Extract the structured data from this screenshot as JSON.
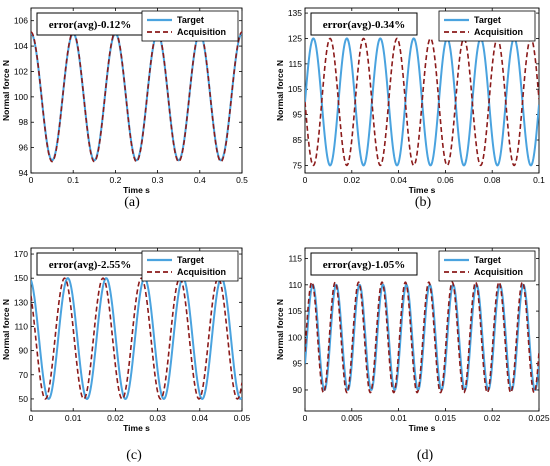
{
  "figure": {
    "colors": {
      "target": "#4aa3df",
      "acquisition": "#8b1a1a"
    }
  },
  "chart_data": [
    {
      "type": "line",
      "panel": "(a)",
      "annotation": "error(avg)-0.12%",
      "xlabel": "Time s",
      "ylabel": "Normal force N",
      "xlim": [
        0,
        0.5
      ],
      "ylim": [
        94,
        107
      ],
      "xticks": [
        0,
        0.1,
        0.2,
        0.3,
        0.4,
        0.5
      ],
      "xtick_labels": [
        "0",
        "0.1",
        "0.2",
        "0.3",
        "0.4",
        "0.5"
      ],
      "yticks": [
        94,
        96,
        98,
        100,
        102,
        104,
        106
      ],
      "ytick_labels": [
        "94",
        "96",
        "98",
        "100",
        "102",
        "104",
        "106"
      ],
      "legend_position": "top-right",
      "series": [
        {
          "name": "Target",
          "style": "solid",
          "function": "sine",
          "offset": 100,
          "amplitude": 5,
          "period": 0.1,
          "phase_deg": 90
        },
        {
          "name": "Acquisition",
          "style": "dashed",
          "function": "sine",
          "offset": 100,
          "amplitude": 5.1,
          "period": 0.1,
          "phase_deg": 90
        }
      ]
    },
    {
      "type": "line",
      "panel": "(b)",
      "annotation": "error(avg)-0.34%",
      "xlabel": "Time s",
      "ylabel": "Normal force N",
      "xlim": [
        0,
        0.1
      ],
      "ylim": [
        72,
        137
      ],
      "xticks": [
        0,
        0.02,
        0.04,
        0.06,
        0.08,
        0.1
      ],
      "xtick_labels": [
        "0",
        "0.02",
        "0.04",
        "0.06",
        "0.08",
        "0.1"
      ],
      "yticks": [
        75,
        85,
        95,
        105,
        115,
        125,
        135
      ],
      "ytick_labels": [
        "75",
        "85",
        "95",
        "105",
        "115",
        "125",
        "135"
      ],
      "legend_position": "top-right",
      "series": [
        {
          "name": "Target",
          "style": "solid",
          "function": "sine",
          "offset": 100,
          "amplitude": 25,
          "period": 0.0143,
          "phase_deg": 0
        },
        {
          "name": "Acquisition",
          "style": "dashed",
          "function": "sine",
          "offset": 100,
          "amplitude": 25,
          "period": 0.0143,
          "phase_deg": 180
        }
      ]
    },
    {
      "type": "line",
      "panel": "(c)",
      "annotation": "error(avg)-2.55%",
      "xlabel": "Time s",
      "ylabel": "Normal force N",
      "xlim": [
        0,
        0.05
      ],
      "ylim": [
        40,
        175
      ],
      "xticks": [
        0,
        0.01,
        0.02,
        0.03,
        0.04,
        0.05
      ],
      "xtick_labels": [
        "0",
        "0.01",
        "0.02",
        "0.03",
        "0.04",
        "0.05"
      ],
      "yticks": [
        50,
        70,
        90,
        110,
        130,
        150,
        170
      ],
      "ytick_labels": [
        "50",
        "70",
        "90",
        "110",
        "130",
        "150",
        "170"
      ],
      "legend_position": "top-right",
      "series": [
        {
          "name": "Target",
          "style": "solid",
          "function": "sine",
          "offset": 100,
          "amplitude": 50,
          "period": 0.0091,
          "phase_deg": 105
        },
        {
          "name": "Acquisition",
          "style": "dashed",
          "function": "sine",
          "offset": 100,
          "amplitude": 50,
          "period": 0.0091,
          "phase_deg": 135
        }
      ]
    },
    {
      "type": "line",
      "panel": "(d)",
      "annotation": "error(avg)-1.05%",
      "xlabel": "Time s",
      "ylabel": "Normal force N",
      "xlim": [
        0,
        0.025
      ],
      "ylim": [
        86,
        117
      ],
      "xticks": [
        0,
        0.005,
        0.01,
        0.015,
        0.02,
        0.025
      ],
      "xtick_labels": [
        "0",
        "0.005",
        "0.01",
        "0.015",
        "0.02",
        "0.025"
      ],
      "yticks": [
        90,
        95,
        100,
        105,
        110,
        115
      ],
      "ytick_labels": [
        "90",
        "95",
        "100",
        "105",
        "110",
        "115"
      ],
      "legend_position": "top-right",
      "series": [
        {
          "name": "Target",
          "style": "solid",
          "function": "sine",
          "offset": 100,
          "amplitude": 10,
          "period": 0.0025,
          "phase_deg": 330
        },
        {
          "name": "Acquisition",
          "style": "dashed",
          "function": "sine",
          "offset": 100,
          "amplitude": 10.5,
          "period": 0.0025,
          "phase_deg": 345
        }
      ]
    }
  ]
}
